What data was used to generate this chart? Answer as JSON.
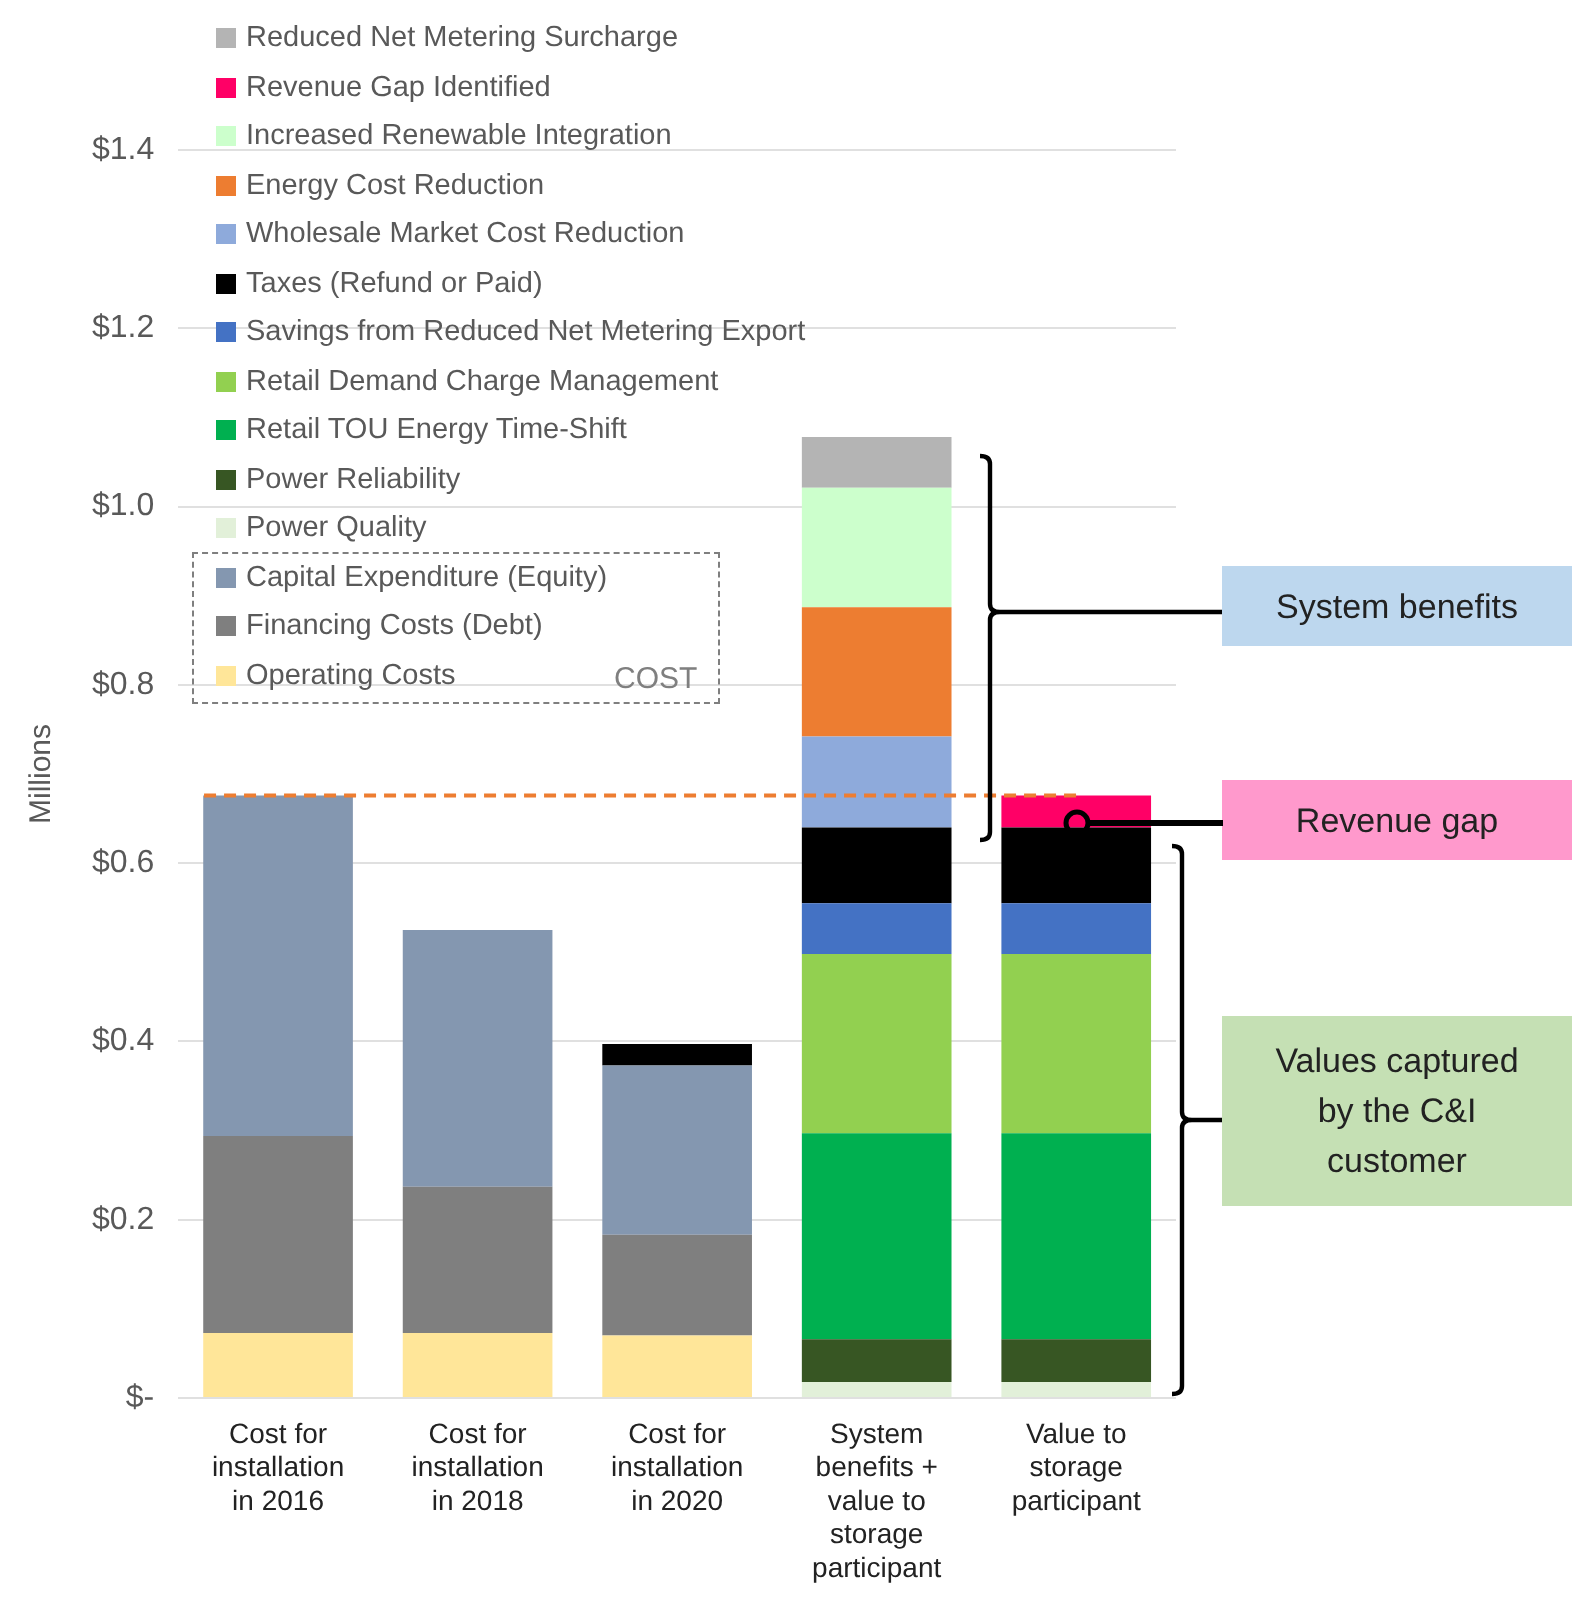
{
  "chart_data": {
    "type": "bar",
    "stacked": true,
    "ylabel": "Millions",
    "categories": [
      "Cost for installation in 2016",
      "Cost for installation in 2018",
      "Cost for installation in 2020",
      "System benefits + value to storage participant",
      "Value to storage participant"
    ],
    "ylim": [
      0,
      1.4
    ],
    "yticks": [
      {
        "value": 0,
        "label": "$-"
      },
      {
        "value": 0.2,
        "label": "$0.2"
      },
      {
        "value": 0.4,
        "label": "$0.4"
      },
      {
        "value": 0.6,
        "label": "$0.6"
      },
      {
        "value": 0.8,
        "label": "$0.8"
      },
      {
        "value": 1.0,
        "label": "$1.0"
      },
      {
        "value": 1.2,
        "label": "$1.2"
      },
      {
        "value": 1.4,
        "label": "$1.4"
      }
    ],
    "grid": "y",
    "legend": "top left",
    "series": [
      {
        "name": "Operating Costs",
        "color": "#ffe699",
        "values": [
          0.073,
          0.073,
          0.07,
          null,
          null
        ]
      },
      {
        "name": "Financing Costs (Debt)",
        "color": "#7f7f7f",
        "values": [
          0.221,
          0.164,
          0.113,
          null,
          null
        ]
      },
      {
        "name": "Capital Expenditure (Equity)",
        "color": "#8497b0",
        "values": [
          0.382,
          0.288,
          0.19,
          null,
          null
        ]
      },
      {
        "name": "Power Quality",
        "color": "#e2f0d9",
        "values": [
          null,
          null,
          null,
          0.018,
          0.018
        ]
      },
      {
        "name": "Power Reliability",
        "color": "#375623",
        "values": [
          null,
          null,
          null,
          0.048,
          0.048
        ]
      },
      {
        "name": "Retail TOU Energy Time-Shift",
        "color": "#00b050",
        "values": [
          null,
          null,
          null,
          0.231,
          0.231
        ]
      },
      {
        "name": "Retail Demand Charge Management",
        "color": "#92d050",
        "values": [
          null,
          null,
          null,
          0.201,
          0.201
        ]
      },
      {
        "name": "Savings from Reduced Net Metering Export",
        "color": "#4472c4",
        "values": [
          null,
          null,
          null,
          0.057,
          0.057
        ]
      },
      {
        "name": "Taxes (Refund or Paid)",
        "color": "#000000",
        "values": [
          null,
          null,
          0.024,
          0.085,
          0.085
        ]
      },
      {
        "name": "Wholesale Market Cost Reduction",
        "color": "#8eaadb",
        "values": [
          null,
          null,
          null,
          0.102,
          null
        ]
      },
      {
        "name": "Energy Cost Reduction",
        "color": "#ed7d31",
        "values": [
          null,
          null,
          null,
          0.145,
          null
        ]
      },
      {
        "name": "Increased Renewable Integration",
        "color": "#ccffcc",
        "values": [
          null,
          null,
          null,
          0.134,
          null
        ]
      },
      {
        "name": "Revenue Gap Identified",
        "color": "#ff0066",
        "values": [
          null,
          null,
          null,
          null,
          0.036
        ]
      },
      {
        "name": "Reduced Net Metering Surcharge",
        "color": "#b4b4b4",
        "values": [
          null,
          null,
          null,
          0.057,
          null
        ]
      }
    ],
    "ref_lines": [
      {
        "axis": "y",
        "value": 0.676,
        "color": "#ed7d31",
        "line_style": "dashed"
      }
    ],
    "annotations": [
      "System benefits",
      "Revenue gap",
      "Values captured by the C&I customer",
      "COST"
    ]
  }
}
